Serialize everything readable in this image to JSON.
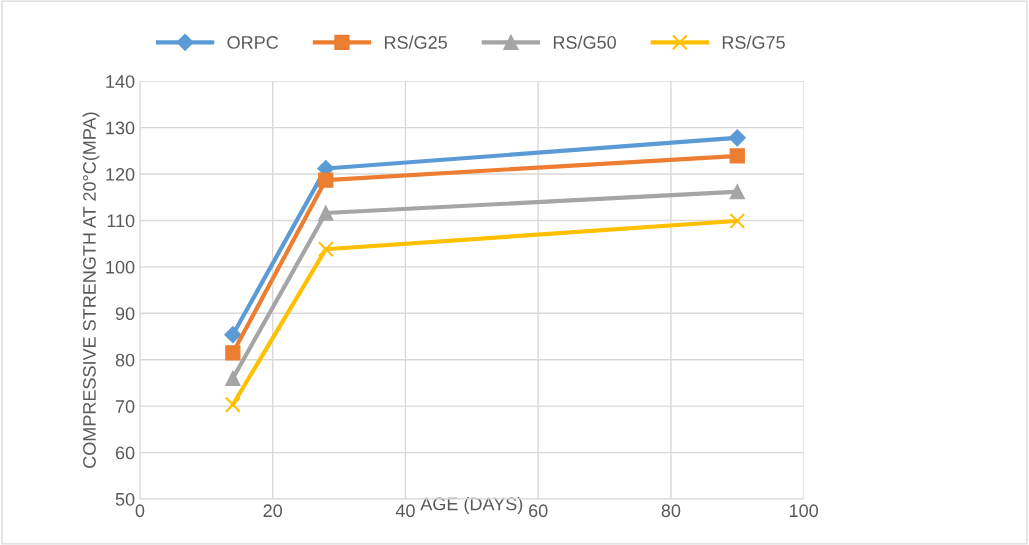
{
  "chart_data": {
    "type": "line",
    "xlabel": "AGE (DAYS)",
    "ylabel": "COMPRESSIVE STRENGTH AT 20°C(MPA)",
    "x": [
      14,
      28,
      90
    ],
    "series": [
      {
        "name": "ORPC",
        "color": "#5b9bd5",
        "marker": "diamond",
        "values": [
          85.4,
          121.2,
          127.8
        ]
      },
      {
        "name": "RS/G25",
        "color": "#ed7d31",
        "marker": "square",
        "values": [
          81.5,
          118.7,
          123.9
        ]
      },
      {
        "name": "RS/G50",
        "color": "#a5a5a5",
        "marker": "triangle",
        "values": [
          76,
          111.6,
          116.2
        ]
      },
      {
        "name": "RS/G75",
        "color": "#ffc000",
        "marker": "cross",
        "values": [
          70.3,
          103.8,
          109.9
        ]
      }
    ],
    "xlim": [
      0,
      100
    ],
    "xticks": [
      0,
      20,
      40,
      60,
      80,
      100
    ],
    "ylim": [
      50,
      140
    ],
    "yticks": [
      50,
      60,
      70,
      80,
      90,
      100,
      110,
      120,
      130,
      140
    ],
    "grid": true,
    "legend": "top",
    "line_style": "solid"
  }
}
